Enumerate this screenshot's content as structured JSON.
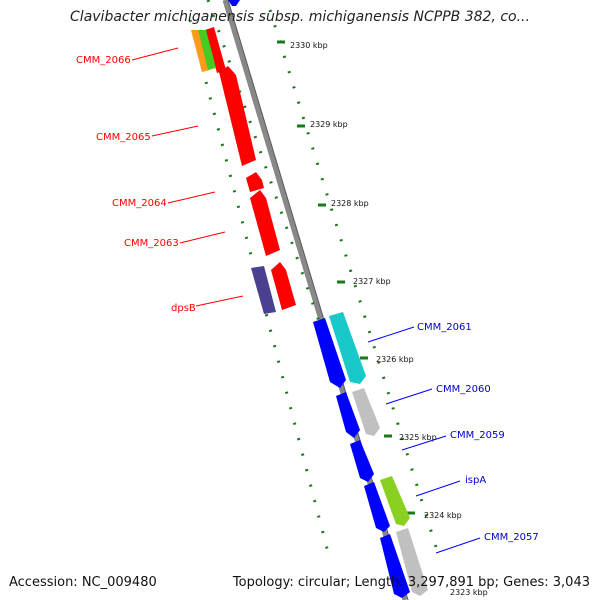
{
  "map": {
    "title": "Clavibacter michiganensis subsp. michiganensis NCPPB 382, co...",
    "accession_text": "Accession: NC_009480",
    "summary_text": "Topology: circular; Length: 3,297,891 bp; Genes: 3,043"
  },
  "axis_ticks": [
    "2330 kbp",
    "2329 kbp",
    "2328 kbp",
    "2327 kbp",
    "2326 kbp",
    "2325 kbp",
    "2324 kbp",
    "2323 kbp"
  ],
  "genes_reverse": [
    {
      "label": "CMM_2066",
      "color": "#ff0000"
    },
    {
      "label": "CMM_2065",
      "color": "#ff0000"
    },
    {
      "label": "CMM_2064",
      "color": "#ff0000"
    },
    {
      "label": "CMM_2063",
      "color": "#ff0000"
    },
    {
      "label": "dpsB",
      "color": "#ff0000"
    }
  ],
  "genes_forward": [
    {
      "label": "CMM_2061",
      "color": "#0000ff"
    },
    {
      "label": "CMM_2060",
      "color": "#0000ff"
    },
    {
      "label": "CMM_2059",
      "color": "#0000ff"
    },
    {
      "label": "ispA",
      "color": "#0000ff"
    },
    {
      "label": "CMM_2057",
      "color": "#0000ff"
    }
  ],
  "colors": {
    "reverse_strand": "#ff0000",
    "forward_strand": "#0000ff",
    "backbone": "#888888",
    "tick_dots": "#1a7a1a",
    "cog_cyan": "#19c8c8",
    "cog_gray": "#c0c0c0",
    "cog_purple": "#4a4090",
    "cog_green": "#8ad020",
    "cog_orange": "#ff9a1a",
    "cog_lime": "#44cc22"
  }
}
